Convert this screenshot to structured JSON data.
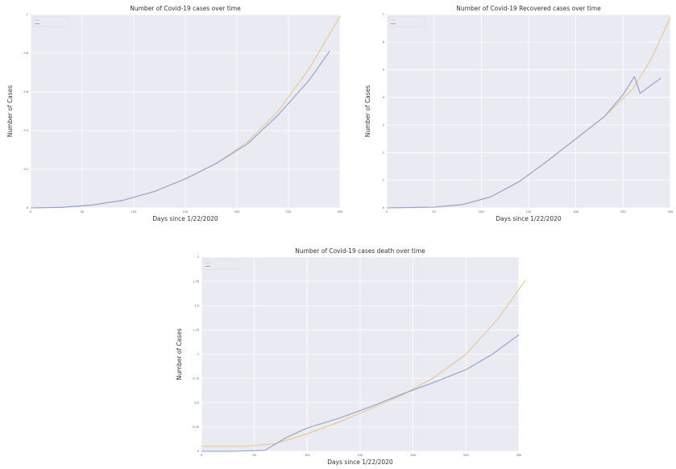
{
  "chart_data": [
    {
      "type": "line",
      "title": "Number of Covid-19 cases over time",
      "xlabel": "Days since 1/22/2020",
      "ylabel": "Number of Cases",
      "xlim": [
        0,
        300
      ],
      "ylim": [
        0,
        1
      ],
      "x_ticks": [
        0,
        50,
        100,
        150,
        200,
        250,
        300
      ],
      "y_ticks": [
        0.0,
        0.2,
        0.4,
        0.6,
        0.8,
        1.0
      ],
      "grid": true,
      "legend": "top-left",
      "colors": [
        "#e6c88a",
        "#8da0cb"
      ],
      "series": [
        {
          "name": "",
          "x": [
            0,
            30,
            60,
            90,
            120,
            150,
            180,
            210,
            240,
            270,
            300
          ],
          "y": [
            0.0,
            0.003,
            0.015,
            0.04,
            0.085,
            0.15,
            0.23,
            0.34,
            0.5,
            0.72,
            0.99
          ]
        },
        {
          "name": "",
          "x": [
            0,
            30,
            60,
            90,
            120,
            150,
            180,
            210,
            240,
            270,
            290
          ],
          "y": [
            0.0,
            0.003,
            0.015,
            0.04,
            0.085,
            0.15,
            0.23,
            0.33,
            0.48,
            0.66,
            0.81
          ]
        }
      ]
    },
    {
      "type": "line",
      "title": "Number of Covid-19 Recovered cases over time",
      "xlabel": "Days since 1/22/2020",
      "ylabel": "Number of Cases",
      "xlim": [
        0,
        300
      ],
      "ylim": [
        0,
        7
      ],
      "x_ticks": [
        0,
        50,
        100,
        150,
        200,
        250,
        300
      ],
      "y_ticks": [
        0,
        1,
        2,
        3,
        4,
        5,
        6,
        7
      ],
      "grid": true,
      "legend": "top-left",
      "colors": [
        "#e6c88a",
        "#8da0cb"
      ],
      "series": [
        {
          "name": "",
          "x": [
            0,
            50,
            80,
            110,
            140,
            170,
            200,
            230,
            260,
            280,
            300
          ],
          "y": [
            0.0,
            0.03,
            0.12,
            0.4,
            0.95,
            1.7,
            2.5,
            3.3,
            4.3,
            5.4,
            6.9
          ]
        },
        {
          "name": "",
          "x": [
            0,
            50,
            80,
            110,
            140,
            170,
            200,
            230,
            250,
            262,
            268,
            280,
            290
          ],
          "y": [
            0.0,
            0.03,
            0.12,
            0.4,
            0.95,
            1.7,
            2.5,
            3.3,
            4.1,
            4.75,
            4.15,
            4.45,
            4.7
          ]
        }
      ]
    },
    {
      "type": "line",
      "title": "Number of Covid-19 cases death over time",
      "xlabel": "Days since 1/22/2020",
      "ylabel": "Number of Cases",
      "xlim": [
        0,
        300
      ],
      "ylim": [
        0,
        2
      ],
      "x_ticks": [
        0,
        50,
        100,
        150,
        200,
        250,
        300
      ],
      "y_ticks": [
        0.0,
        0.25,
        0.5,
        0.75,
        1.0,
        1.25,
        1.5,
        1.75,
        2.0
      ],
      "grid": true,
      "legend": "top-left",
      "colors": [
        "#e6c88a",
        "#8da0cb"
      ],
      "series": [
        {
          "name": "",
          "x": [
            0,
            40,
            70,
            100,
            130,
            160,
            190,
            220,
            250,
            280,
            310
          ],
          "y": [
            0.05,
            0.05,
            0.08,
            0.18,
            0.3,
            0.44,
            0.58,
            0.76,
            1.0,
            1.36,
            1.82
          ]
        },
        {
          "name": "",
          "x": [
            0,
            30,
            60,
            80,
            100,
            130,
            160,
            190,
            220,
            250,
            275,
            300
          ],
          "y": [
            0.0,
            0.0,
            0.01,
            0.14,
            0.24,
            0.34,
            0.46,
            0.59,
            0.71,
            0.84,
            1.0,
            1.2
          ]
        }
      ]
    }
  ]
}
